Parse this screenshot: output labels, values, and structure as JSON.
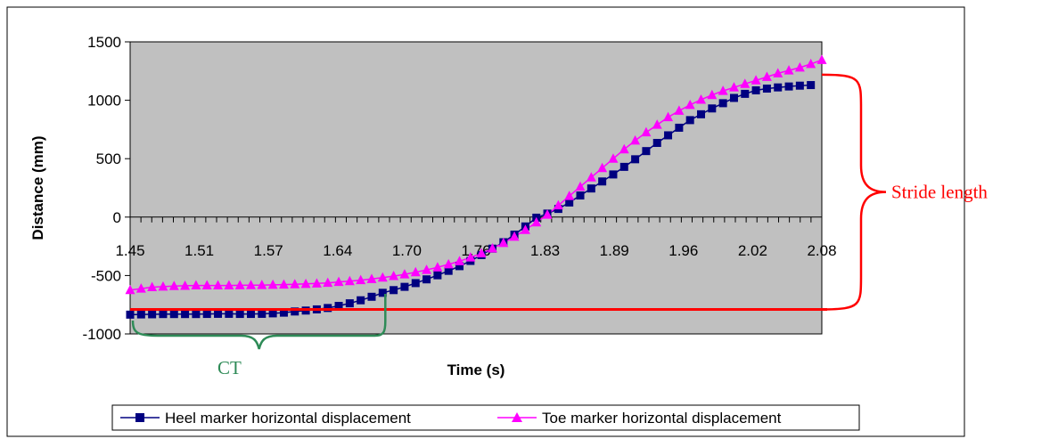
{
  "chart_data": {
    "type": "line",
    "title": "",
    "xlabel": "Time (s)",
    "ylabel": "Distance (mm)",
    "ylim": [
      -1000,
      1500
    ],
    "xlim": [
      1.45,
      2.08
    ],
    "yticks": [
      1500,
      1000,
      500,
      0,
      -500,
      -1000
    ],
    "xtick_labels": [
      "1.45",
      "1.51",
      "1.57",
      "1.64",
      "1.70",
      "1.76",
      "1.83",
      "1.89",
      "1.96",
      "2.02",
      "2.08"
    ],
    "grid": false,
    "plot_background": "#c0c0c0",
    "legend_position": "bottom",
    "series": [
      {
        "name": "Heel marker horizontal displacement",
        "color": "#000080",
        "marker": "square",
        "x": [
          1.45,
          1.46,
          1.47,
          1.48,
          1.49,
          1.5,
          1.51,
          1.52,
          1.53,
          1.54,
          1.55,
          1.56,
          1.57,
          1.58,
          1.59,
          1.6,
          1.61,
          1.62,
          1.63,
          1.64,
          1.65,
          1.66,
          1.67,
          1.68,
          1.69,
          1.7,
          1.71,
          1.72,
          1.73,
          1.74,
          1.75,
          1.76,
          1.77,
          1.78,
          1.79,
          1.8,
          1.81,
          1.82,
          1.83,
          1.84,
          1.85,
          1.86,
          1.87,
          1.88,
          1.89,
          1.9,
          1.91,
          1.92,
          1.93,
          1.94,
          1.95,
          1.96,
          1.97,
          1.98,
          1.99,
          2.0,
          2.01,
          2.02,
          2.03,
          2.04,
          2.05,
          2.06,
          2.07
        ],
        "values": [
          -835,
          -833,
          -832,
          -830,
          -830,
          -830,
          -830,
          -829,
          -828,
          -828,
          -829,
          -829,
          -828,
          -824,
          -818,
          -808,
          -800,
          -790,
          -778,
          -760,
          -738,
          -712,
          -682,
          -648,
          -625,
          -597,
          -565,
          -533,
          -498,
          -460,
          -420,
          -375,
          -325,
          -270,
          -215,
          -150,
          -80,
          -5,
          30,
          70,
          125,
          185,
          245,
          305,
          365,
          430,
          495,
          565,
          635,
          700,
          765,
          830,
          880,
          930,
          975,
          1020,
          1055,
          1085,
          1100,
          1110,
          1118,
          1125,
          1130
        ]
      },
      {
        "name": "Toe marker horizontal displacement",
        "color": "#ff00ff",
        "marker": "triangle",
        "x": [
          1.45,
          1.46,
          1.47,
          1.48,
          1.49,
          1.5,
          1.51,
          1.52,
          1.53,
          1.54,
          1.55,
          1.56,
          1.57,
          1.58,
          1.59,
          1.6,
          1.61,
          1.62,
          1.63,
          1.64,
          1.65,
          1.66,
          1.67,
          1.68,
          1.69,
          1.7,
          1.71,
          1.72,
          1.73,
          1.74,
          1.75,
          1.76,
          1.77,
          1.78,
          1.79,
          1.8,
          1.81,
          1.82,
          1.83,
          1.84,
          1.85,
          1.86,
          1.87,
          1.88,
          1.89,
          1.9,
          1.91,
          1.92,
          1.93,
          1.94,
          1.95,
          1.96,
          1.97,
          1.98,
          1.99,
          2.0,
          2.01,
          2.02,
          2.03,
          2.04,
          2.05,
          2.06,
          2.07,
          2.08
        ],
        "values": [
          -625,
          -612,
          -600,
          -595,
          -590,
          -588,
          -585,
          -585,
          -585,
          -585,
          -584,
          -583,
          -582,
          -580,
          -578,
          -575,
          -572,
          -568,
          -563,
          -555,
          -548,
          -540,
          -530,
          -518,
          -505,
          -490,
          -472,
          -452,
          -430,
          -405,
          -378,
          -345,
          -310,
          -268,
          -222,
          -168,
          -110,
          -45,
          20,
          100,
          180,
          260,
          340,
          420,
          500,
          580,
          655,
          725,
          790,
          855,
          910,
          960,
          1005,
          1045,
          1080,
          1110,
          1140,
          1170,
          1200,
          1230,
          1255,
          1280,
          1310,
          1345
        ]
      }
    ]
  },
  "annotations": {
    "stride_label": "Stride length",
    "ct_label": "CT",
    "stride_color": "#ff0000",
    "ct_color": "#2e8b57",
    "stride_from": 1120,
    "stride_to": -790,
    "ct_x_start": 1.45,
    "ct_x_end": 1.68
  }
}
